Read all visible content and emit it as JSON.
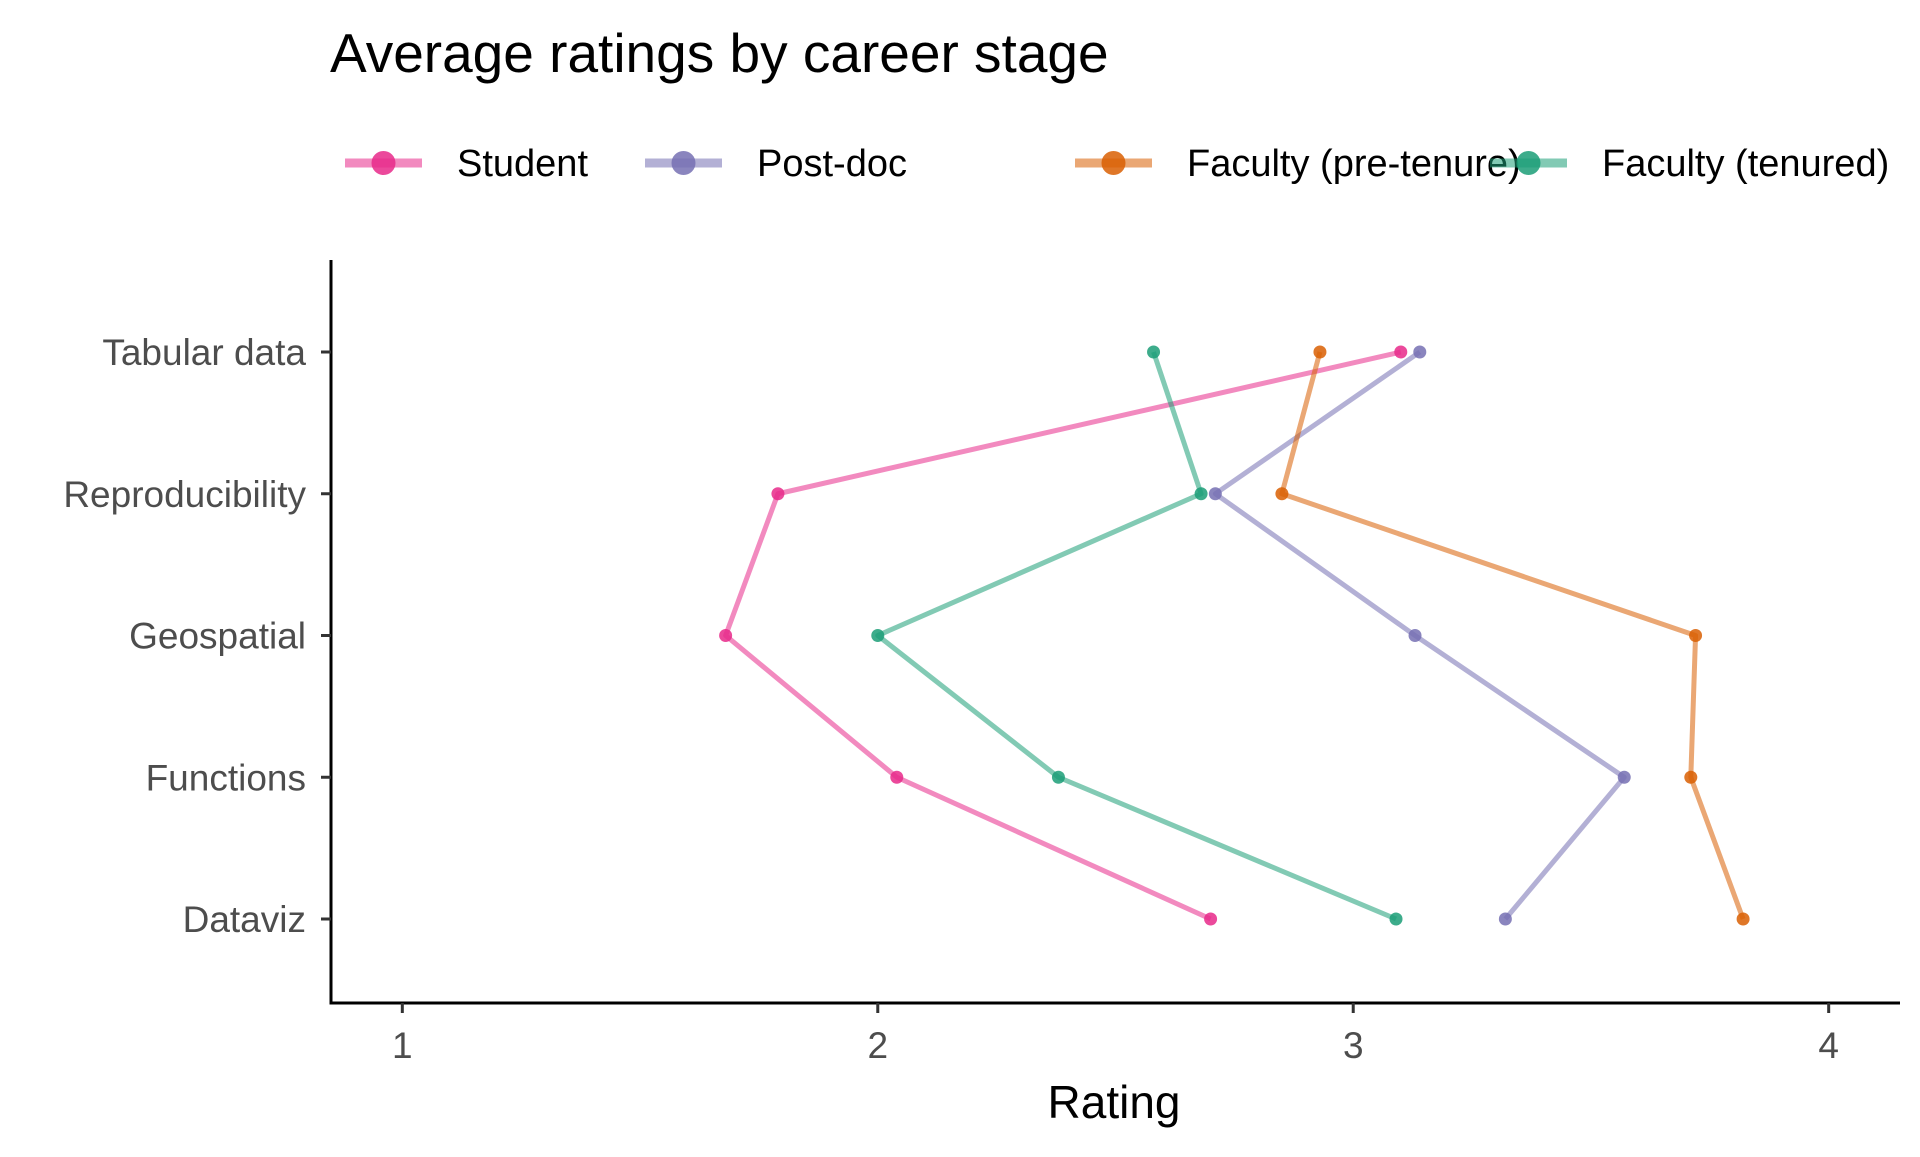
{
  "chart_data": {
    "type": "line",
    "title": "Average ratings by career stage",
    "xlabel": "Rating",
    "ylabel": "",
    "xlim": [
      0.85,
      4.15
    ],
    "x_ticks": [
      1,
      2,
      3,
      4
    ],
    "categories": [
      "Tabular data",
      "Reproducibility",
      "Geospatial",
      "Functions",
      "Dataviz"
    ],
    "legend_position": "top",
    "grid": false,
    "series": [
      {
        "name": "Student",
        "color": "#e7298a",
        "values": [
          3.1,
          1.79,
          1.68,
          2.04,
          2.7
        ]
      },
      {
        "name": "Post-doc",
        "color": "#7570b3",
        "values": [
          3.14,
          2.71,
          3.13,
          3.57,
          3.32
        ]
      },
      {
        "name": "Faculty (pre-tenure)",
        "color": "#d95f02",
        "values": [
          2.93,
          2.85,
          3.72,
          3.71,
          3.82
        ]
      },
      {
        "name": "Faculty (tenured)",
        "color": "#1b9e77",
        "values": [
          2.58,
          2.68,
          2.0,
          2.38,
          3.09
        ]
      }
    ]
  }
}
